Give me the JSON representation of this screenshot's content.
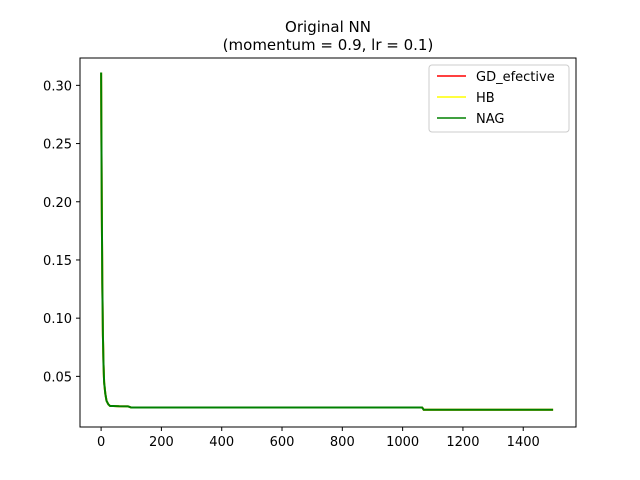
{
  "chart_data": {
    "type": "line",
    "title": "Original NN",
    "subtitle": "(momentum = 0.9, lr = 0.1)",
    "xlabel": "",
    "ylabel": "",
    "xlim": [
      -70,
      1575
    ],
    "ylim": [
      0.0065,
      0.3235
    ],
    "x_ticks": [
      0,
      200,
      400,
      600,
      800,
      1000,
      1200,
      1400
    ],
    "y_ticks": [
      0.05,
      0.1,
      0.15,
      0.2,
      0.25,
      0.3
    ],
    "y_tick_labels": [
      "0.05",
      "0.10",
      "0.15",
      "0.20",
      "0.25",
      "0.30"
    ],
    "legend_position": "top-right",
    "grid": false,
    "series": [
      {
        "name": "GD_efective",
        "color": "#ff0000",
        "x": [
          0,
          2,
          4,
          6,
          8,
          10,
          14,
          18,
          24,
          30,
          40,
          60,
          90,
          100,
          200,
          400,
          600,
          800,
          1000,
          1065,
          1070,
          1200,
          1400,
          1499
        ],
        "y": [
          0.311,
          0.205,
          0.13,
          0.085,
          0.06,
          0.045,
          0.035,
          0.029,
          0.026,
          0.0245,
          0.0245,
          0.0243,
          0.0242,
          0.0232,
          0.0232,
          0.0232,
          0.0232,
          0.0232,
          0.0232,
          0.0232,
          0.0213,
          0.0213,
          0.0213,
          0.0213
        ]
      },
      {
        "name": "HB",
        "color": "#ffff00",
        "x": [
          0,
          2,
          4,
          6,
          8,
          10,
          14,
          18,
          24,
          30,
          40,
          60,
          90,
          100,
          200,
          400,
          600,
          800,
          1000,
          1065,
          1070,
          1200,
          1400,
          1499
        ],
        "y": [
          0.311,
          0.205,
          0.13,
          0.085,
          0.06,
          0.045,
          0.035,
          0.029,
          0.026,
          0.0245,
          0.0245,
          0.0243,
          0.0242,
          0.0232,
          0.0232,
          0.0232,
          0.0232,
          0.0232,
          0.0232,
          0.0232,
          0.0213,
          0.0213,
          0.0213,
          0.0213
        ]
      },
      {
        "name": "NAG",
        "color": "#008000",
        "x": [
          0,
          2,
          4,
          6,
          8,
          10,
          14,
          18,
          24,
          30,
          40,
          60,
          90,
          100,
          200,
          400,
          600,
          800,
          1000,
          1065,
          1070,
          1200,
          1400,
          1499
        ],
        "y": [
          0.311,
          0.205,
          0.13,
          0.085,
          0.06,
          0.045,
          0.035,
          0.029,
          0.026,
          0.0245,
          0.0245,
          0.0243,
          0.0242,
          0.0232,
          0.0232,
          0.0232,
          0.0232,
          0.0232,
          0.0232,
          0.0232,
          0.0213,
          0.0213,
          0.0213,
          0.0213
        ]
      }
    ]
  }
}
